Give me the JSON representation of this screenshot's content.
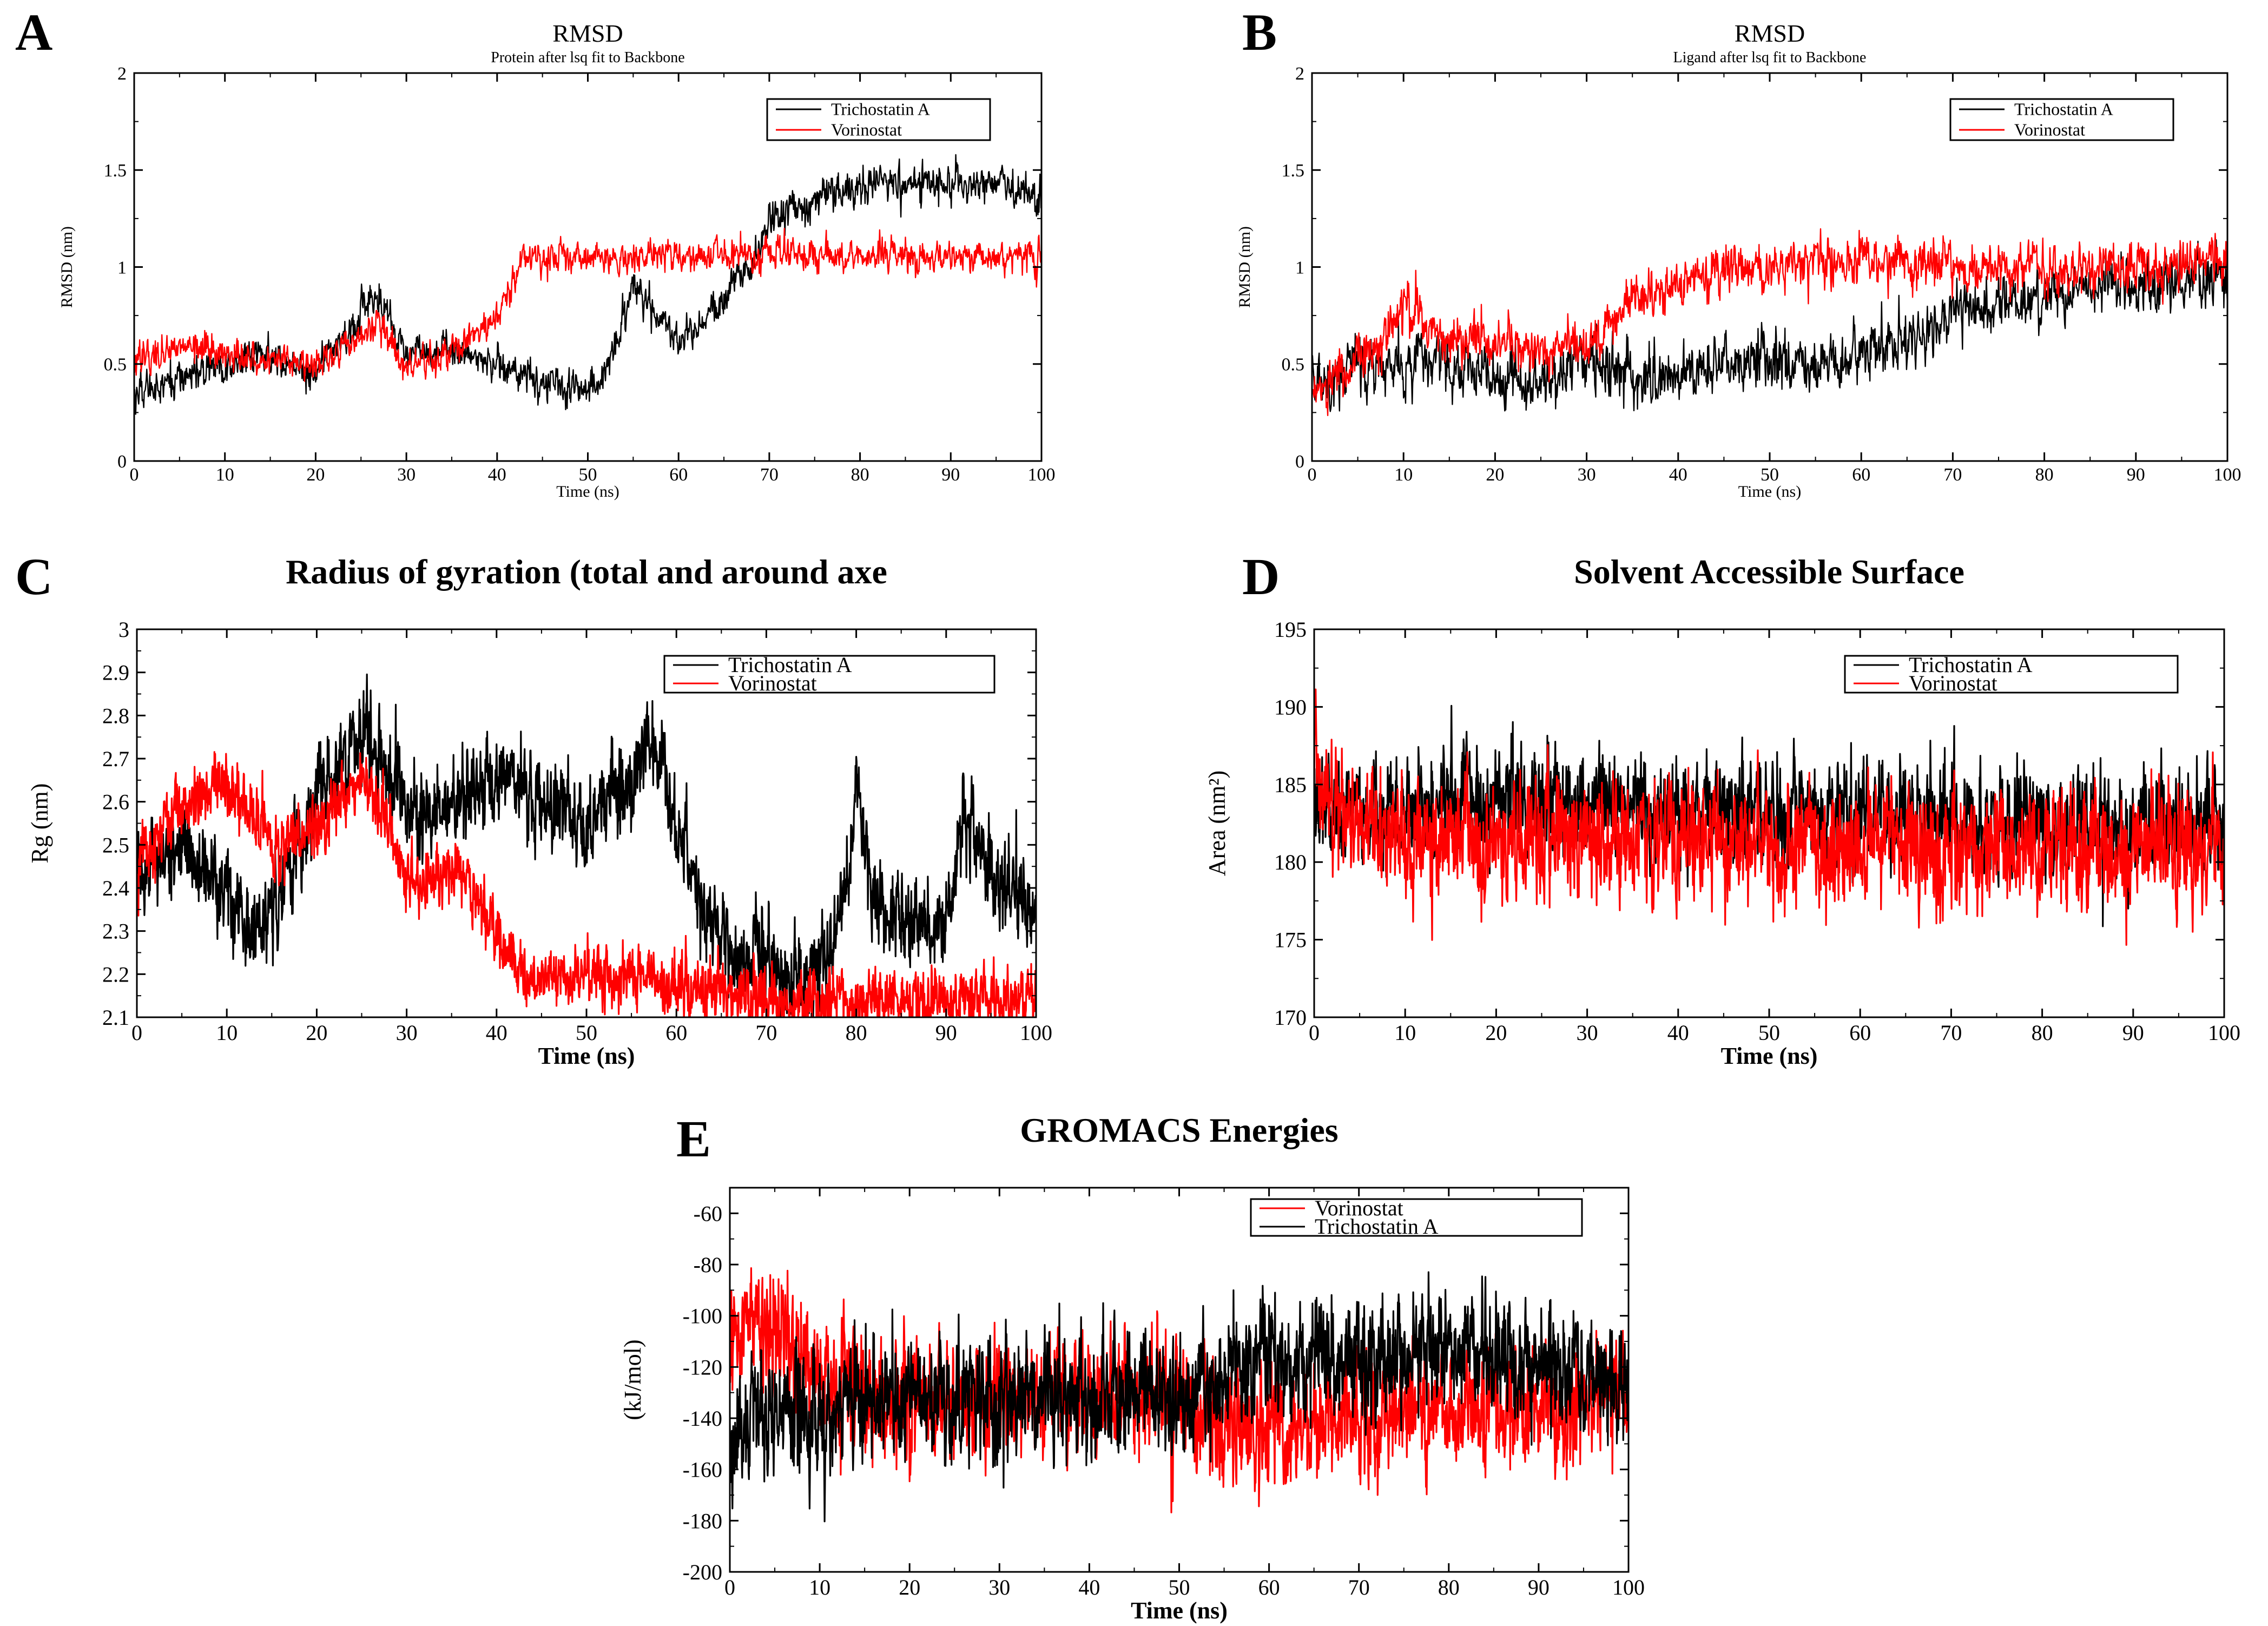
{
  "figure": {
    "description_free": true
  },
  "colors": {
    "trichostatin": "#000000",
    "vorinostat": "#ff0000"
  },
  "chart_data": [
    {
      "id": "A",
      "label": "A",
      "type": "line",
      "title": "RMSD",
      "subtitle": "Protein after lsq fit to Backbone",
      "xlabel": "Time (ns)",
      "ylabel": "RMSD (nm)",
      "xlim": [
        0,
        100
      ],
      "ylim": [
        0,
        2
      ],
      "xticks": [
        "0",
        "10",
        "20",
        "30",
        "40",
        "50",
        "60",
        "70",
        "80",
        "90",
        "100"
      ],
      "yticks": [
        "0",
        "0.5",
        "1",
        "1.5",
        "2"
      ],
      "legend_position": "top-right",
      "series": [
        {
          "name": "Trichostatin A",
          "color": "#000000",
          "noise": 0.045,
          "x": [
            0,
            5,
            10,
            15,
            20,
            25,
            27,
            30,
            35,
            40,
            45,
            50,
            52,
            55,
            58,
            60,
            63,
            65,
            68,
            70,
            75,
            80,
            85,
            90,
            95,
            100
          ],
          "values": [
            0.35,
            0.42,
            0.5,
            0.55,
            0.45,
            0.75,
            0.85,
            0.55,
            0.58,
            0.5,
            0.4,
            0.38,
            0.45,
            0.9,
            0.75,
            0.6,
            0.75,
            0.85,
            1.0,
            1.25,
            1.35,
            1.42,
            1.45,
            1.42,
            1.45,
            1.35
          ]
        },
        {
          "name": "Vorinostat",
          "color": "#ff0000",
          "noise": 0.04,
          "x": [
            0,
            5,
            10,
            15,
            20,
            25,
            27,
            30,
            35,
            40,
            43,
            45,
            50,
            60,
            70,
            80,
            90,
            100
          ],
          "values": [
            0.5,
            0.6,
            0.55,
            0.5,
            0.5,
            0.65,
            0.7,
            0.5,
            0.55,
            0.75,
            1.05,
            1.05,
            1.05,
            1.05,
            1.07,
            1.06,
            1.06,
            1.05
          ]
        }
      ]
    },
    {
      "id": "B",
      "label": "B",
      "type": "line",
      "title": "RMSD",
      "subtitle": "Ligand after lsq fit to Backbone",
      "xlabel": "Time (ns)",
      "ylabel": "RMSD (nm)",
      "xlim": [
        0,
        100
      ],
      "ylim": [
        0,
        2
      ],
      "xticks": [
        "0",
        "10",
        "20",
        "30",
        "40",
        "50",
        "60",
        "70",
        "80",
        "90",
        "100"
      ],
      "yticks": [
        "0",
        "0.5",
        "1",
        "1.5",
        "2"
      ],
      "legend_position": "top-right",
      "series": [
        {
          "name": "Trichostatin A",
          "color": "#000000",
          "noise": 0.07,
          "x": [
            0,
            5,
            10,
            15,
            20,
            25,
            30,
            35,
            40,
            45,
            50,
            55,
            60,
            65,
            70,
            75,
            80,
            85,
            90,
            95,
            100
          ],
          "values": [
            0.4,
            0.5,
            0.5,
            0.48,
            0.42,
            0.4,
            0.52,
            0.42,
            0.45,
            0.5,
            0.55,
            0.5,
            0.55,
            0.6,
            0.75,
            0.8,
            0.85,
            0.9,
            0.9,
            0.92,
            0.95
          ]
        },
        {
          "name": "Vorinostat",
          "color": "#ff0000",
          "noise": 0.06,
          "x": [
            0,
            3,
            7,
            10,
            15,
            20,
            25,
            30,
            33,
            35,
            40,
            45,
            50,
            55,
            60,
            65,
            70,
            75,
            80,
            85,
            90,
            95,
            100
          ],
          "values": [
            0.3,
            0.45,
            0.6,
            0.8,
            0.6,
            0.6,
            0.55,
            0.6,
            0.7,
            0.85,
            0.9,
            0.98,
            1.02,
            1.0,
            1.05,
            1.02,
            1.0,
            1.0,
            1.0,
            1.0,
            1.0,
            1.02,
            1.05
          ]
        }
      ]
    },
    {
      "id": "C",
      "label": "C",
      "type": "line",
      "title": "Radius of gyration (total and around axe",
      "xlabel": "Time (ns)",
      "ylabel": "Rg (nm)",
      "xlim": [
        0,
        100
      ],
      "ylim": [
        2.1,
        3.0
      ],
      "xticks": [
        "0",
        "10",
        "20",
        "30",
        "40",
        "50",
        "60",
        "70",
        "80",
        "90",
        "100"
      ],
      "yticks": [
        "2.1",
        "2.2",
        "2.3",
        "2.4",
        "2.5",
        "2.6",
        "2.7",
        "2.8",
        "2.9",
        "3"
      ],
      "legend_position": "top-right",
      "series": [
        {
          "name": "Trichostatin A",
          "color": "#000000",
          "noise": 0.05,
          "x": [
            0,
            5,
            10,
            13,
            15,
            20,
            25,
            27,
            30,
            35,
            40,
            45,
            50,
            55,
            57,
            60,
            63,
            67,
            70,
            73,
            75,
            78,
            80,
            82,
            85,
            90,
            92,
            95,
            100
          ],
          "values": [
            2.45,
            2.5,
            2.4,
            2.3,
            2.35,
            2.6,
            2.75,
            2.7,
            2.55,
            2.6,
            2.65,
            2.6,
            2.55,
            2.65,
            2.75,
            2.55,
            2.35,
            2.22,
            2.25,
            2.15,
            2.2,
            2.3,
            2.6,
            2.35,
            2.32,
            2.3,
            2.55,
            2.45,
            2.32
          ]
        },
        {
          "name": "Vorinostat",
          "color": "#ff0000",
          "noise": 0.035,
          "x": [
            0,
            5,
            10,
            15,
            20,
            25,
            28,
            30,
            35,
            40,
            43,
            45,
            50,
            55,
            60,
            65,
            70,
            75,
            80,
            85,
            90,
            95,
            100
          ],
          "values": [
            2.45,
            2.6,
            2.65,
            2.5,
            2.55,
            2.65,
            2.55,
            2.4,
            2.45,
            2.3,
            2.2,
            2.19,
            2.2,
            2.19,
            2.18,
            2.16,
            2.14,
            2.14,
            2.14,
            2.14,
            2.14,
            2.14,
            2.15
          ]
        }
      ]
    },
    {
      "id": "D",
      "label": "D",
      "type": "line",
      "title": "Solvent Accessible Surface",
      "xlabel": "Time (ns)",
      "ylabel": "Area (nm²)",
      "xlim": [
        0,
        100
      ],
      "ylim": [
        170,
        195
      ],
      "xticks": [
        "0",
        "10",
        "20",
        "30",
        "40",
        "50",
        "60",
        "70",
        "80",
        "90",
        "100"
      ],
      "yticks": [
        "170",
        "175",
        "180",
        "185",
        "190",
        "195"
      ],
      "legend_position": "top-right",
      "series": [
        {
          "name": "Trichostatin A",
          "color": "#000000",
          "noise": 1.6,
          "x": [
            0,
            5,
            10,
            20,
            30,
            40,
            50,
            60,
            70,
            80,
            90,
            100
          ],
          "values": [
            183.5,
            183.5,
            183.5,
            184,
            183.5,
            183.5,
            183,
            183,
            182.8,
            182.8,
            182.5,
            182.5
          ]
        },
        {
          "name": "Vorinostat",
          "color": "#ff0000",
          "noise": 1.8,
          "x": [
            0,
            2,
            5,
            10,
            20,
            30,
            40,
            50,
            60,
            70,
            80,
            90,
            100
          ],
          "values": [
            186,
            183,
            182,
            181.5,
            181.5,
            181.5,
            181.5,
            181,
            181,
            181,
            180.8,
            180.8,
            181
          ]
        }
      ]
    },
    {
      "id": "E",
      "label": "E",
      "type": "line",
      "title": "GROMACS Energies",
      "xlabel": "Time (ns)",
      "ylabel": "(kJ/mol)",
      "xlim": [
        0,
        100
      ],
      "ylim": [
        -200,
        -50
      ],
      "xticks": [
        "0",
        "10",
        "20",
        "30",
        "40",
        "50",
        "60",
        "70",
        "80",
        "90",
        "100"
      ],
      "yticks": [
        "-200",
        "-180",
        "-160",
        "-140",
        "-120",
        "-100",
        "-80",
        "-60"
      ],
      "legend_position": "top-right",
      "series": [
        {
          "name": "Vorinostat",
          "color": "#ff0000",
          "noise": 11,
          "x": [
            0,
            3,
            6,
            10,
            13,
            20,
            30,
            40,
            50,
            53,
            60,
            70,
            80,
            90,
            100
          ],
          "values": [
            -110,
            -100,
            -110,
            -120,
            -130,
            -135,
            -132,
            -130,
            -130,
            -140,
            -145,
            -142,
            -135,
            -138,
            -130
          ]
        },
        {
          "name": "Trichostatin A",
          "color": "#000000",
          "noise": 11,
          "x": [
            0,
            5,
            10,
            13,
            20,
            30,
            40,
            50,
            53,
            60,
            70,
            80,
            90,
            100
          ],
          "values": [
            -145,
            -140,
            -142,
            -135,
            -132,
            -133,
            -132,
            -133,
            -125,
            -115,
            -120,
            -110,
            -120,
            -125
          ]
        }
      ]
    }
  ]
}
